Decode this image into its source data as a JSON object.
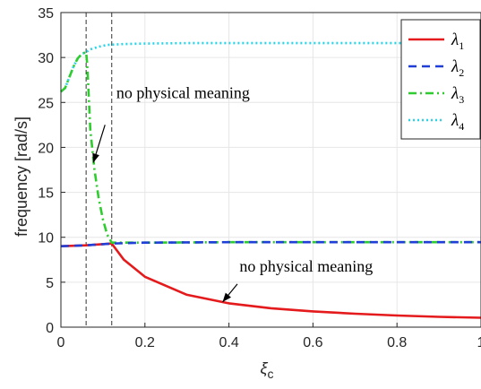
{
  "chart_data": {
    "type": "line",
    "title": "",
    "xlabel": "ξ",
    "xlabel_sub": "c",
    "ylabel": "frequency [rad/s]",
    "xlim": [
      0,
      1
    ],
    "ylim": [
      0,
      35
    ],
    "x_ticks": [
      "0",
      "0.2",
      "0.4",
      "0.6",
      "0.8",
      "1"
    ],
    "x_tick_values": [
      0,
      0.2,
      0.4,
      0.6,
      0.8,
      1
    ],
    "y_ticks": [
      "0",
      "5",
      "10",
      "15",
      "20",
      "25",
      "30",
      "35"
    ],
    "y_tick_values": [
      0,
      5,
      10,
      15,
      20,
      25,
      30,
      35
    ],
    "grid": true,
    "legend_position": "top-right",
    "vlines": [
      0.06,
      0.121
    ],
    "series": [
      {
        "name": "λ",
        "sub": "1",
        "color": "#e41a1c",
        "style": "solid",
        "x": [
          0,
          0.06,
          0.121,
          0.15,
          0.2,
          0.3,
          0.4,
          0.5,
          0.6,
          0.7,
          0.8,
          0.9,
          1.0
        ],
        "y": [
          9.0,
          9.1,
          9.3,
          7.5,
          5.6,
          3.6,
          2.65,
          2.1,
          1.75,
          1.5,
          1.3,
          1.15,
          1.05
        ]
      },
      {
        "name": "λ",
        "sub": "2",
        "color": "#1f3fd8",
        "style": "dashed",
        "x": [
          0,
          0.06,
          0.121,
          0.2,
          0.4,
          0.6,
          0.8,
          1.0
        ],
        "y": [
          9.0,
          9.1,
          9.3,
          9.4,
          9.45,
          9.45,
          9.45,
          9.45
        ]
      },
      {
        "name": "λ",
        "sub": "3",
        "color": "#2ecc2e",
        "style": "dashdot",
        "x": [
          0,
          0.01,
          0.02,
          0.03,
          0.04,
          0.05,
          0.06,
          0.062,
          0.065,
          0.07,
          0.08,
          0.09,
          0.1,
          0.11,
          0.121,
          0.2,
          0.4,
          0.6,
          0.8,
          1.0
        ],
        "y": [
          26.2,
          26.6,
          27.8,
          29.0,
          29.9,
          30.4,
          30.6,
          29.6,
          27.0,
          22.0,
          17.5,
          14.3,
          12.0,
          10.3,
          9.4,
          9.4,
          9.45,
          9.45,
          9.45,
          9.45
        ]
      },
      {
        "name": "λ",
        "sub": "4",
        "color": "#27d5e8",
        "style": "dotted",
        "x": [
          0,
          0.01,
          0.02,
          0.03,
          0.04,
          0.05,
          0.06,
          0.07,
          0.09,
          0.11,
          0.15,
          0.2,
          0.3,
          0.4,
          0.6,
          0.8,
          1.0
        ],
        "y": [
          26.2,
          26.6,
          27.8,
          29.0,
          29.9,
          30.4,
          30.6,
          30.9,
          31.2,
          31.4,
          31.5,
          31.55,
          31.6,
          31.6,
          31.6,
          31.6,
          31.6
        ]
      }
    ],
    "annotations": [
      {
        "text": "no physical meaning",
        "text_x": 0.132,
        "text_y": 25.5,
        "arrow_from": [
          0.105,
          22.5
        ],
        "arrow_to": [
          0.077,
          18.3
        ]
      },
      {
        "text": "no physical meaning",
        "text_x": 0.425,
        "text_y": 6.2,
        "arrow_from": [
          0.42,
          4.8
        ],
        "arrow_to": [
          0.385,
          2.8
        ]
      }
    ]
  }
}
